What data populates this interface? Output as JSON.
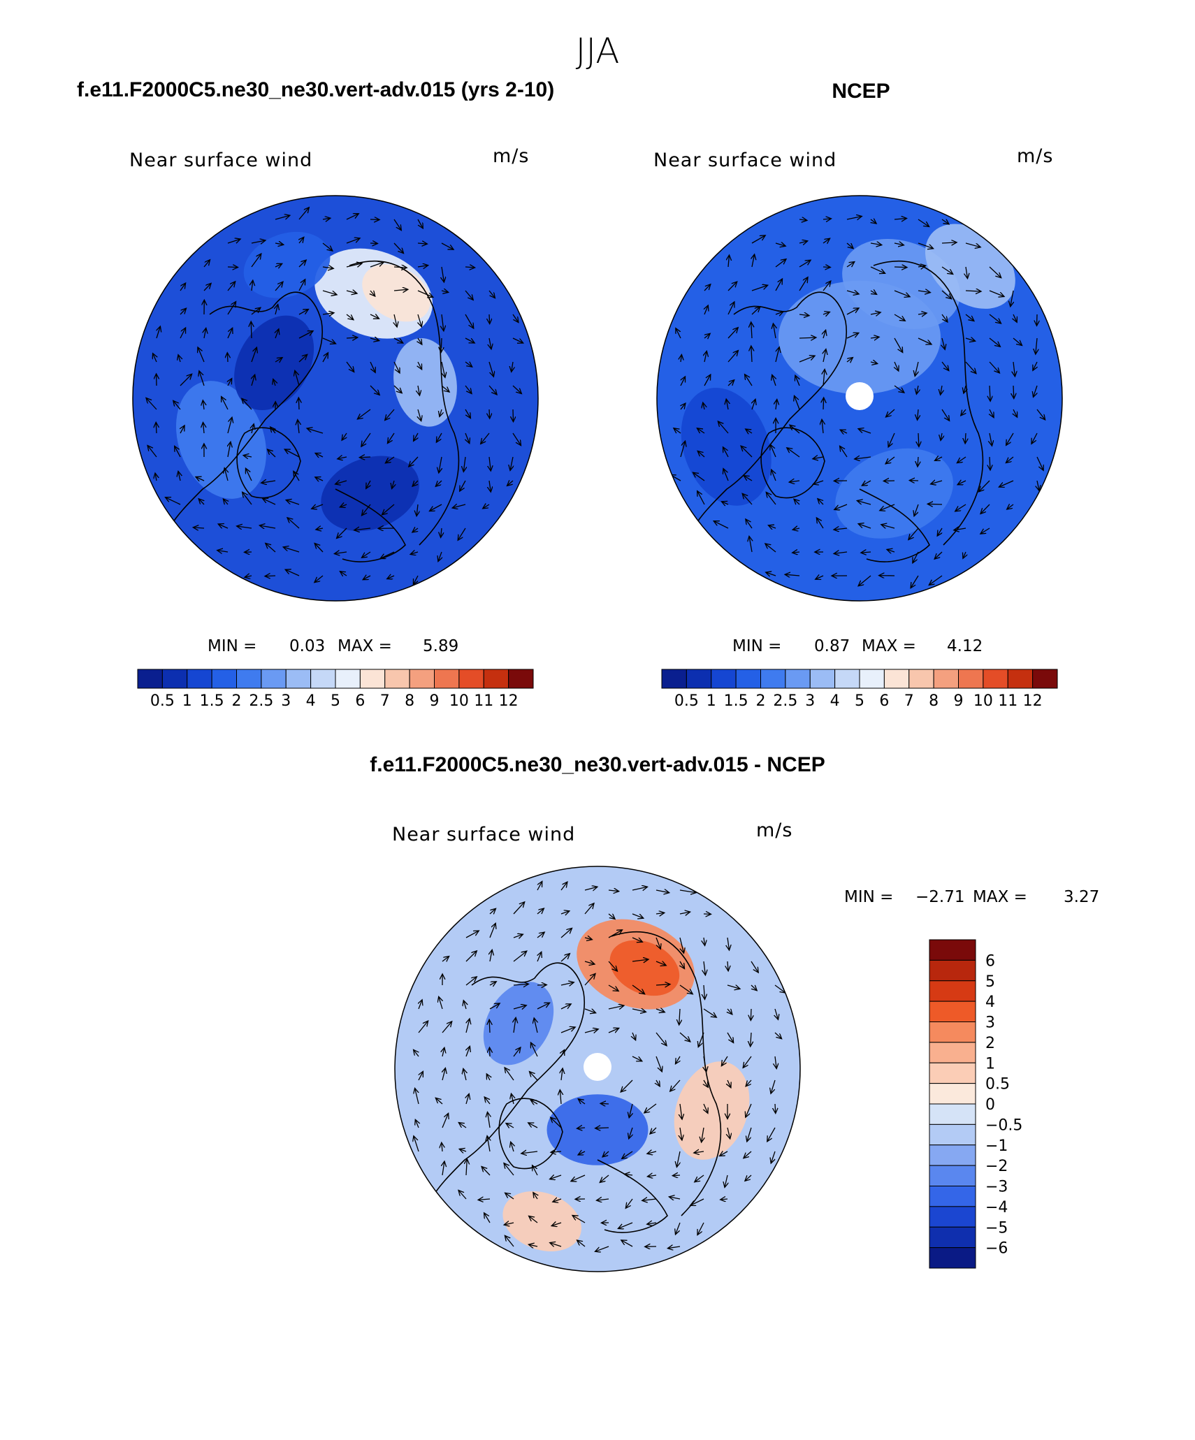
{
  "figure": {
    "title": "JJA",
    "color_gray": "#000000"
  },
  "panels": [
    {
      "id": "model",
      "header": "f.e11.F2000C5.ne30_ne30.vert-adv.015 (yrs 2-10)",
      "variable": "Near surface wind",
      "units": "m/s",
      "min_label": "MIN =",
      "min_value": "0.03",
      "max_label": "MAX =",
      "max_value": "5.89",
      "colorbar_ticks": [
        "0.5",
        "1",
        "1.5",
        "2",
        "2.5",
        "3",
        "4",
        "5",
        "6",
        "7",
        "8",
        "9",
        "10",
        "11",
        "12"
      ],
      "colorbar_colors": [
        "#0a1f8f",
        "#0c2fb0",
        "#1546d2",
        "#2460e6",
        "#3f7bef",
        "#6a9af3",
        "#9bbcf5",
        "#c5d8f7",
        "#e8f0fb",
        "#fbe4d6",
        "#f8c6ad",
        "#f4a07f",
        "#ee7650",
        "#e44d27",
        "#c5300f",
        "#7a0a0a"
      ],
      "base_color": "#1d4fd8",
      "patches": [
        {
          "lon": 20,
          "r": 0.55,
          "size": 0.3,
          "color": "#e8f0fb"
        },
        {
          "lon": 30,
          "r": 0.6,
          "size": 0.18,
          "color": "#fbe4d6"
        },
        {
          "lon": 80,
          "r": 0.45,
          "size": 0.22,
          "color": "#9bbcf5"
        },
        {
          "lon": 160,
          "r": 0.5,
          "size": 0.25,
          "color": "#0c2fb0"
        },
        {
          "lon": 250,
          "r": 0.6,
          "size": 0.3,
          "color": "#3f7bef"
        },
        {
          "lon": 300,
          "r": 0.35,
          "size": 0.25,
          "color": "#0c2fb0"
        },
        {
          "lon": 340,
          "r": 0.7,
          "size": 0.22,
          "color": "#2460e6"
        }
      ]
    },
    {
      "id": "obs",
      "header": "NCEP",
      "variable": "Near surface wind",
      "units": "m/s",
      "min_label": "MIN =",
      "min_value": "0.87",
      "max_label": "MAX =",
      "max_value": "4.12",
      "colorbar_ticks": [
        "0.5",
        "1",
        "1.5",
        "2",
        "2.5",
        "3",
        "4",
        "5",
        "6",
        "7",
        "8",
        "9",
        "10",
        "11",
        "12"
      ],
      "colorbar_colors": [
        "#0a1f8f",
        "#0c2fb0",
        "#1546d2",
        "#2460e6",
        "#3f7bef",
        "#6a9af3",
        "#9bbcf5",
        "#c5d8f7",
        "#e8f0fb",
        "#fbe4d6",
        "#f8c6ad",
        "#f4a07f",
        "#ee7650",
        "#e44d27",
        "#c5300f",
        "#7a0a0a"
      ],
      "base_color": "#2460e6",
      "patches": [
        {
          "lon": 0,
          "r": 0.3,
          "size": 0.4,
          "color": "#6a9af3"
        },
        {
          "lon": 20,
          "r": 0.6,
          "size": 0.3,
          "color": "#6a9af3"
        },
        {
          "lon": 40,
          "r": 0.85,
          "size": 0.25,
          "color": "#9bbcf5"
        },
        {
          "lon": 160,
          "r": 0.5,
          "size": 0.3,
          "color": "#3f7bef"
        },
        {
          "lon": 250,
          "r": 0.7,
          "size": 0.3,
          "color": "#1546d2"
        }
      ]
    },
    {
      "id": "diff",
      "header": "f.e11.F2000C5.ne30_ne30.vert-adv.015 - NCEP",
      "variable": "Near surface wind",
      "units": "m/s",
      "min_label": "MIN =",
      "min_value": "−2.71",
      "max_label": "MAX =",
      "max_value": "3.27",
      "colorbar_ticks": [
        "6",
        "5",
        "4",
        "3",
        "2",
        "1",
        "0.5",
        "0",
        "−0.5",
        "−1",
        "−2",
        "−3",
        "−4",
        "−5",
        "−6"
      ],
      "colorbar_colors": [
        "#7a0a0a",
        "#b8270d",
        "#d63a14",
        "#ee5a28",
        "#f58a5e",
        "#f9b08f",
        "#fbcdb6",
        "#fbe9dc",
        "#d5e3f7",
        "#b3cbf5",
        "#86a8f2",
        "#5a87ef",
        "#3466e8",
        "#1b46d1",
        "#0f2fae",
        "#0a1a85"
      ],
      "base_color": "#b3cbf5",
      "patches": [
        {
          "lon": 20,
          "r": 0.55,
          "size": 0.3,
          "color": "#f58a5e"
        },
        {
          "lon": 25,
          "r": 0.55,
          "size": 0.18,
          "color": "#ee5a28"
        },
        {
          "lon": 110,
          "r": 0.6,
          "size": 0.25,
          "color": "#fbcdb6"
        },
        {
          "lon": 180,
          "r": 0.3,
          "size": 0.25,
          "color": "#3466e8"
        },
        {
          "lon": 200,
          "r": 0.8,
          "size": 0.2,
          "color": "#fbcdb6"
        },
        {
          "lon": 300,
          "r": 0.45,
          "size": 0.22,
          "color": "#5a87ef"
        }
      ]
    }
  ]
}
